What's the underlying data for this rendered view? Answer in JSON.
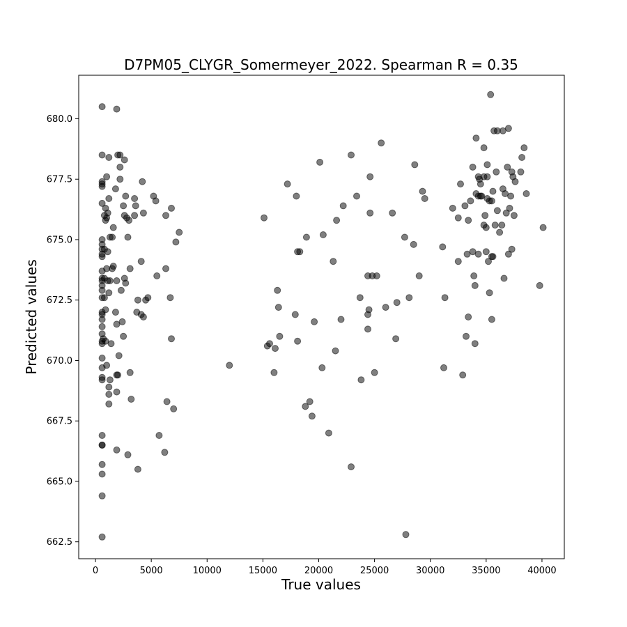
{
  "chart_data": {
    "type": "scatter",
    "title": "D7PM05_CLYGR_Somermeyer_2022. Spearman R = 0.35",
    "xlabel": "True values",
    "ylabel": "Predicted values",
    "xlim": [
      -1500,
      42000
    ],
    "ylim": [
      661.8,
      681.8
    ],
    "xticks": [
      0,
      5000,
      10000,
      15000,
      20000,
      25000,
      30000,
      35000,
      40000
    ],
    "xtick_labels": [
      "0",
      "5000",
      "10000",
      "15000",
      "20000",
      "25000",
      "30000",
      "35000",
      "40000"
    ],
    "yticks": [
      662.5,
      665.0,
      667.5,
      670.0,
      672.5,
      675.0,
      677.5,
      680.0
    ],
    "ytick_labels": [
      "662.5",
      "665.0",
      "667.5",
      "670.0",
      "672.5",
      "675.0",
      "677.5",
      "680.0"
    ],
    "grid": false,
    "marker_color": "#000000",
    "marker_opacity": 0.5,
    "points": [
      [
        600,
        680.5
      ],
      [
        1900,
        680.4
      ],
      [
        600,
        678.5
      ],
      [
        1200,
        678.4
      ],
      [
        2000,
        678.5
      ],
      [
        2200,
        678.5
      ],
      [
        2600,
        678.3
      ],
      [
        2200,
        678.0
      ],
      [
        1000,
        677.6
      ],
      [
        2200,
        677.5
      ],
      [
        600,
        677.4
      ],
      [
        600,
        677.3
      ],
      [
        600,
        677.2
      ],
      [
        1800,
        677.1
      ],
      [
        4200,
        677.4
      ],
      [
        2700,
        676.8
      ],
      [
        3500,
        676.7
      ],
      [
        1200,
        676.7
      ],
      [
        600,
        676.5
      ],
      [
        900,
        676.3
      ],
      [
        2500,
        676.4
      ],
      [
        3600,
        676.4
      ],
      [
        1100,
        676.1
      ],
      [
        800,
        676.0
      ],
      [
        1000,
        675.9
      ],
      [
        900,
        675.8
      ],
      [
        2600,
        676.0
      ],
      [
        2800,
        675.9
      ],
      [
        3000,
        675.8
      ],
      [
        3500,
        676.0
      ],
      [
        4300,
        676.1
      ],
      [
        5200,
        676.8
      ],
      [
        5400,
        676.6
      ],
      [
        6800,
        676.3
      ],
      [
        6300,
        676.0
      ],
      [
        7500,
        675.3
      ],
      [
        1600,
        675.5
      ],
      [
        1300,
        675.1
      ],
      [
        1500,
        675.1
      ],
      [
        2900,
        675.1
      ],
      [
        600,
        675.0
      ],
      [
        600,
        674.8
      ],
      [
        600,
        674.6
      ],
      [
        800,
        674.6
      ],
      [
        1100,
        674.5
      ],
      [
        600,
        674.3
      ],
      [
        600,
        674.4
      ],
      [
        7200,
        674.9
      ],
      [
        4100,
        674.1
      ],
      [
        600,
        673.7
      ],
      [
        1000,
        673.8
      ],
      [
        1500,
        673.8
      ],
      [
        1600,
        673.9
      ],
      [
        3100,
        673.8
      ],
      [
        6300,
        673.8
      ],
      [
        600,
        673.4
      ],
      [
        600,
        673.3
      ],
      [
        800,
        673.4
      ],
      [
        1100,
        673.3
      ],
      [
        1300,
        673.3
      ],
      [
        1900,
        673.3
      ],
      [
        2600,
        673.4
      ],
      [
        2700,
        673.2
      ],
      [
        5500,
        673.5
      ],
      [
        600,
        673.1
      ],
      [
        600,
        672.9
      ],
      [
        1200,
        672.8
      ],
      [
        2300,
        672.9
      ],
      [
        600,
        672.6
      ],
      [
        800,
        672.6
      ],
      [
        3800,
        672.5
      ],
      [
        4500,
        672.5
      ],
      [
        4700,
        672.6
      ],
      [
        6700,
        672.6
      ],
      [
        600,
        672.0
      ],
      [
        900,
        672.1
      ],
      [
        600,
        671.9
      ],
      [
        1800,
        672.0
      ],
      [
        3700,
        672.0
      ],
      [
        4100,
        671.9
      ],
      [
        4300,
        671.8
      ],
      [
        600,
        671.7
      ],
      [
        600,
        671.4
      ],
      [
        2400,
        671.6
      ],
      [
        1900,
        671.5
      ],
      [
        600,
        671.1
      ],
      [
        2500,
        671.0
      ],
      [
        600,
        670.8
      ],
      [
        700,
        670.9
      ],
      [
        900,
        670.8
      ],
      [
        600,
        670.7
      ],
      [
        1400,
        670.7
      ],
      [
        6800,
        670.9
      ],
      [
        2100,
        670.2
      ],
      [
        600,
        670.1
      ],
      [
        600,
        669.7
      ],
      [
        1000,
        669.8
      ],
      [
        3100,
        669.5
      ],
      [
        600,
        669.3
      ],
      [
        600,
        669.2
      ],
      [
        1300,
        669.2
      ],
      [
        2000,
        669.4
      ],
      [
        1900,
        669.4
      ],
      [
        1200,
        668.9
      ],
      [
        1900,
        668.7
      ],
      [
        1200,
        668.6
      ],
      [
        1200,
        668.2
      ],
      [
        3200,
        668.4
      ],
      [
        6400,
        668.3
      ],
      [
        7000,
        668.0
      ],
      [
        600,
        666.9
      ],
      [
        5700,
        666.9
      ],
      [
        600,
        666.5
      ],
      [
        600,
        666.5
      ],
      [
        1900,
        666.3
      ],
      [
        2900,
        666.1
      ],
      [
        6200,
        666.2
      ],
      [
        600,
        665.7
      ],
      [
        600,
        665.3
      ],
      [
        3800,
        665.5
      ],
      [
        600,
        664.4
      ],
      [
        600,
        662.7
      ],
      [
        12000,
        669.8
      ],
      [
        15100,
        675.9
      ],
      [
        15400,
        670.6
      ],
      [
        15600,
        670.7
      ],
      [
        16000,
        669.5
      ],
      [
        16100,
        670.5
      ],
      [
        16300,
        672.9
      ],
      [
        16400,
        672.2
      ],
      [
        16500,
        671.0
      ],
      [
        17200,
        677.3
      ],
      [
        18000,
        676.8
      ],
      [
        17900,
        671.9
      ],
      [
        18100,
        670.8
      ],
      [
        18100,
        674.5
      ],
      [
        18300,
        674.5
      ],
      [
        18800,
        668.1
      ],
      [
        18900,
        675.1
      ],
      [
        19200,
        668.3
      ],
      [
        19400,
        667.7
      ],
      [
        19600,
        671.6
      ],
      [
        20100,
        678.2
      ],
      [
        20300,
        669.7
      ],
      [
        20400,
        675.2
      ],
      [
        20900,
        667.0
      ],
      [
        21300,
        674.1
      ],
      [
        21600,
        675.8
      ],
      [
        21500,
        670.4
      ],
      [
        22000,
        671.7
      ],
      [
        22200,
        676.4
      ],
      [
        22900,
        678.5
      ],
      [
        22900,
        665.6
      ],
      [
        23400,
        676.8
      ],
      [
        23700,
        672.6
      ],
      [
        23800,
        669.2
      ],
      [
        24400,
        673.5
      ],
      [
        24400,
        671.3
      ],
      [
        24400,
        671.9
      ],
      [
        24600,
        677.6
      ],
      [
        24600,
        676.1
      ],
      [
        24500,
        672.1
      ],
      [
        24800,
        673.5
      ],
      [
        25000,
        669.5
      ],
      [
        25200,
        673.5
      ],
      [
        25600,
        679.0
      ],
      [
        26000,
        672.2
      ],
      [
        26600,
        676.1
      ],
      [
        26900,
        670.9
      ],
      [
        27000,
        672.4
      ],
      [
        27700,
        675.1
      ],
      [
        27800,
        662.8
      ],
      [
        28100,
        672.6
      ],
      [
        28500,
        674.8
      ],
      [
        28600,
        678.1
      ],
      [
        29000,
        673.5
      ],
      [
        29300,
        677.0
      ],
      [
        29500,
        676.7
      ],
      [
        31100,
        674.7
      ],
      [
        31200,
        669.7
      ],
      [
        31300,
        672.6
      ],
      [
        32000,
        676.3
      ],
      [
        32500,
        675.9
      ],
      [
        32500,
        674.1
      ],
      [
        32700,
        677.3
      ],
      [
        32900,
        669.4
      ],
      [
        33100,
        676.4
      ],
      [
        33200,
        671.0
      ],
      [
        33300,
        674.4
      ],
      [
        33400,
        671.8
      ],
      [
        33400,
        675.8
      ],
      [
        33600,
        676.6
      ],
      [
        33800,
        678.0
      ],
      [
        33800,
        674.5
      ],
      [
        33900,
        673.5
      ],
      [
        34000,
        673.1
      ],
      [
        34000,
        670.7
      ],
      [
        34100,
        679.2
      ],
      [
        34100,
        676.9
      ],
      [
        34300,
        677.6
      ],
      [
        34300,
        676.8
      ],
      [
        34300,
        674.4
      ],
      [
        34400,
        677.5
      ],
      [
        34500,
        676.8
      ],
      [
        34500,
        677.3
      ],
      [
        34600,
        676.8
      ],
      [
        34800,
        678.8
      ],
      [
        34800,
        677.6
      ],
      [
        34800,
        675.6
      ],
      [
        34900,
        676.0
      ],
      [
        35000,
        675.5
      ],
      [
        35000,
        674.5
      ],
      [
        35100,
        678.1
      ],
      [
        35100,
        677.6
      ],
      [
        35100,
        676.7
      ],
      [
        35200,
        674.1
      ],
      [
        35300,
        676.6
      ],
      [
        35300,
        672.8
      ],
      [
        35400,
        681.0
      ],
      [
        35500,
        676.6
      ],
      [
        35500,
        674.3
      ],
      [
        35600,
        677.0
      ],
      [
        35600,
        674.3
      ],
      [
        35500,
        671.7
      ],
      [
        35700,
        679.5
      ],
      [
        35800,
        675.6
      ],
      [
        35900,
        677.8
      ],
      [
        36000,
        679.5
      ],
      [
        36000,
        676.2
      ],
      [
        36200,
        675.3
      ],
      [
        36400,
        675.6
      ],
      [
        36500,
        679.5
      ],
      [
        36500,
        677.1
      ],
      [
        36600,
        673.4
      ],
      [
        36700,
        676.9
      ],
      [
        36800,
        676.1
      ],
      [
        36900,
        678.0
      ],
      [
        37000,
        679.6
      ],
      [
        37000,
        674.4
      ],
      [
        37100,
        676.3
      ],
      [
        37200,
        676.8
      ],
      [
        37300,
        677.8
      ],
      [
        37300,
        674.6
      ],
      [
        37400,
        677.6
      ],
      [
        37500,
        676.0
      ],
      [
        37600,
        677.4
      ],
      [
        38100,
        677.8
      ],
      [
        38200,
        678.4
      ],
      [
        38400,
        678.8
      ],
      [
        38600,
        676.9
      ],
      [
        39800,
        673.1
      ],
      [
        40100,
        675.5
      ]
    ]
  }
}
